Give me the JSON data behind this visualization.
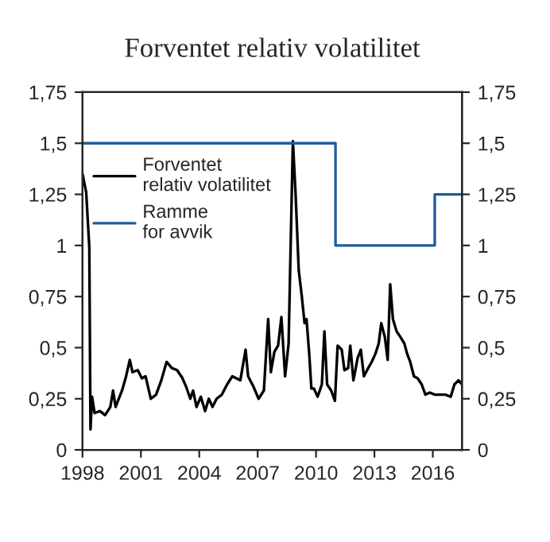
{
  "chart_data": {
    "type": "line",
    "title": "Forventet relativ volatilitet",
    "xlim": [
      1998,
      2017.5
    ],
    "xticks": [
      1998,
      2001,
      2004,
      2007,
      2010,
      2013,
      2016
    ],
    "ylim": [
      0,
      1.75
    ],
    "yticks": [
      {
        "value": 0,
        "label": "0"
      },
      {
        "value": 0.25,
        "label": "0,25"
      },
      {
        "value": 0.5,
        "label": "0,5"
      },
      {
        "value": 0.75,
        "label": "0,75"
      },
      {
        "value": 1,
        "label": "1"
      },
      {
        "value": 1.25,
        "label": "1,25"
      },
      {
        "value": 1.5,
        "label": "1,5"
      },
      {
        "value": 1.75,
        "label": "1,75"
      }
    ],
    "y2lim": [
      0,
      1.75
    ],
    "y2ticks": [
      {
        "value": 0,
        "label": "0"
      },
      {
        "value": 0.25,
        "label": "0,25"
      },
      {
        "value": 0.5,
        "label": "0,5"
      },
      {
        "value": 0.75,
        "label": "0,75"
      },
      {
        "value": 1,
        "label": "1"
      },
      {
        "value": 1.25,
        "label": "1,25"
      },
      {
        "value": 1.5,
        "label": "1,5"
      },
      {
        "value": 1.75,
        "label": "1,75"
      }
    ],
    "grid": false,
    "legend": "top left",
    "series": [
      {
        "name": "Forventet\nrelativ volatilitet",
        "color": "#000000",
        "x": [
          1998.0,
          1998.19,
          1998.35,
          1998.41,
          1998.49,
          1998.62,
          1998.89,
          1999.16,
          1999.43,
          1999.57,
          1999.7,
          2000.03,
          2000.24,
          2000.43,
          2000.57,
          2000.84,
          2001.05,
          2001.24,
          2001.51,
          2001.78,
          2002.05,
          2002.32,
          2002.59,
          2002.86,
          2003.14,
          2003.32,
          2003.54,
          2003.68,
          2003.86,
          2004.08,
          2004.3,
          2004.49,
          2004.68,
          2004.89,
          2005.16,
          2005.43,
          2005.7,
          2006.11,
          2006.38,
          2006.51,
          2006.78,
          2007.05,
          2007.32,
          2007.54,
          2007.68,
          2007.86,
          2008.05,
          2008.22,
          2008.41,
          2008.59,
          2008.81,
          2008.95,
          2009.11,
          2009.27,
          2009.41,
          2009.51,
          2009.65,
          2009.76,
          2009.89,
          2010.08,
          2010.3,
          2010.43,
          2010.57,
          2010.78,
          2010.97,
          2011.11,
          2011.32,
          2011.46,
          2011.65,
          2011.76,
          2011.92,
          2012.14,
          2012.3,
          2012.46,
          2012.68,
          2012.86,
          2013.05,
          2013.22,
          2013.35,
          2013.54,
          2013.68,
          2013.81,
          2013.95,
          2014.14,
          2014.35,
          2014.54,
          2014.68,
          2014.84,
          2015.03,
          2015.22,
          2015.43,
          2015.62,
          2015.84,
          2016.11,
          2016.38,
          2016.65,
          2016.92,
          2017.11,
          2017.32,
          2017.5
        ],
        "values": [
          1.35,
          1.26,
          0.99,
          0.1,
          0.26,
          0.18,
          0.19,
          0.17,
          0.21,
          0.29,
          0.21,
          0.29,
          0.36,
          0.44,
          0.38,
          0.39,
          0.35,
          0.36,
          0.25,
          0.27,
          0.34,
          0.43,
          0.4,
          0.39,
          0.35,
          0.31,
          0.25,
          0.29,
          0.21,
          0.26,
          0.19,
          0.25,
          0.21,
          0.25,
          0.27,
          0.32,
          0.36,
          0.34,
          0.49,
          0.36,
          0.31,
          0.25,
          0.29,
          0.64,
          0.38,
          0.48,
          0.51,
          0.65,
          0.36,
          0.52,
          1.51,
          1.25,
          0.88,
          0.75,
          0.62,
          0.64,
          0.47,
          0.3,
          0.3,
          0.26,
          0.32,
          0.58,
          0.32,
          0.29,
          0.24,
          0.51,
          0.49,
          0.39,
          0.4,
          0.51,
          0.34,
          0.45,
          0.49,
          0.36,
          0.4,
          0.43,
          0.47,
          0.52,
          0.62,
          0.55,
          0.44,
          0.81,
          0.64,
          0.58,
          0.55,
          0.52,
          0.47,
          0.43,
          0.36,
          0.35,
          0.32,
          0.27,
          0.28,
          0.27,
          0.27,
          0.27,
          0.26,
          0.32,
          0.34,
          0.32
        ]
      },
      {
        "name": "Ramme\nfor avvik",
        "color": "#1f5c99",
        "x": [
          1998,
          2011,
          2011,
          2016.1,
          2016.1,
          2017.5
        ],
        "values": [
          1.5,
          1.5,
          1.0,
          1.0,
          1.25,
          1.25
        ]
      }
    ]
  }
}
